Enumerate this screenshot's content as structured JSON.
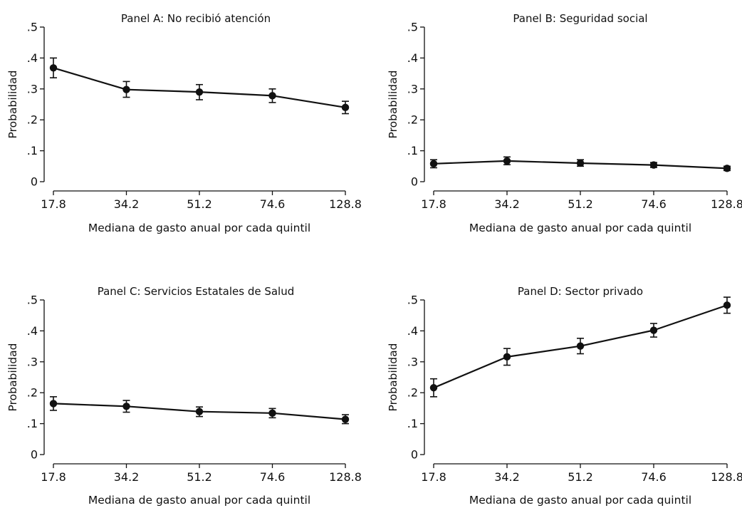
{
  "chart_data": [
    {
      "type": "line",
      "title": "Panel A: No recibió atención",
      "xlabel": "Mediana de gasto anual por cada quintil",
      "ylabel": "Probabilidad",
      "categories": [
        "17.8",
        "34.2",
        "51.2",
        "74.6",
        "128.8"
      ],
      "yticks": [
        "0",
        ".1",
        ".2",
        ".3",
        ".4",
        ".5"
      ],
      "ylim": [
        0,
        0.5
      ],
      "series": [
        {
          "values": [
            0.368,
            0.298,
            0.29,
            0.278,
            0.24
          ],
          "ci_low": [
            0.336,
            0.273,
            0.265,
            0.256,
            0.22
          ],
          "ci_high": [
            0.4,
            0.324,
            0.314,
            0.3,
            0.26
          ]
        }
      ],
      "grid": false,
      "error_bars": true,
      "color": "#111111"
    },
    {
      "type": "line",
      "title": "Panel B: Seguridad social",
      "xlabel": "Mediana de gasto anual por cada quintil",
      "ylabel": "Probabilidad",
      "categories": [
        "17.8",
        "34.2",
        "51.2",
        "74.6",
        "128.8"
      ],
      "yticks": [
        "0",
        ".1",
        ".2",
        ".3",
        ".4",
        ".5"
      ],
      "ylim": [
        0,
        0.5
      ],
      "series": [
        {
          "values": [
            0.058,
            0.067,
            0.06,
            0.054,
            0.043
          ],
          "ci_low": [
            0.045,
            0.055,
            0.05,
            0.046,
            0.036
          ],
          "ci_high": [
            0.071,
            0.08,
            0.071,
            0.062,
            0.05
          ]
        }
      ],
      "grid": false,
      "error_bars": true,
      "color": "#111111"
    },
    {
      "type": "line",
      "title": "Panel C: Servicios Estatales de Salud",
      "xlabel": "Mediana de gasto anual por cada quintil",
      "ylabel": "Probabilidad",
      "categories": [
        "17.8",
        "34.2",
        "51.2",
        "74.6",
        "128.8"
      ],
      "yticks": [
        "0",
        ".1",
        ".2",
        ".3",
        ".4",
        ".5"
      ],
      "ylim": [
        0,
        0.5
      ],
      "series": [
        {
          "values": [
            0.165,
            0.156,
            0.139,
            0.134,
            0.114
          ],
          "ci_low": [
            0.143,
            0.137,
            0.123,
            0.119,
            0.1
          ],
          "ci_high": [
            0.187,
            0.175,
            0.154,
            0.149,
            0.129
          ]
        }
      ],
      "grid": false,
      "error_bars": true,
      "color": "#111111"
    },
    {
      "type": "line",
      "title": "Panel D: Sector privado",
      "xlabel": "Mediana de gasto anual por cada quintil",
      "ylabel": "Probabilidad",
      "categories": [
        "17.8",
        "34.2",
        "51.2",
        "74.6",
        "128.8"
      ],
      "yticks": [
        "0",
        ".1",
        ".2",
        ".3",
        ".4",
        ".5"
      ],
      "ylim": [
        0,
        0.5
      ],
      "series": [
        {
          "values": [
            0.216,
            0.316,
            0.351,
            0.402,
            0.483
          ],
          "ci_low": [
            0.187,
            0.289,
            0.326,
            0.38,
            0.457
          ],
          "ci_high": [
            0.245,
            0.343,
            0.376,
            0.424,
            0.509
          ]
        }
      ],
      "grid": false,
      "error_bars": true,
      "color": "#111111"
    }
  ]
}
